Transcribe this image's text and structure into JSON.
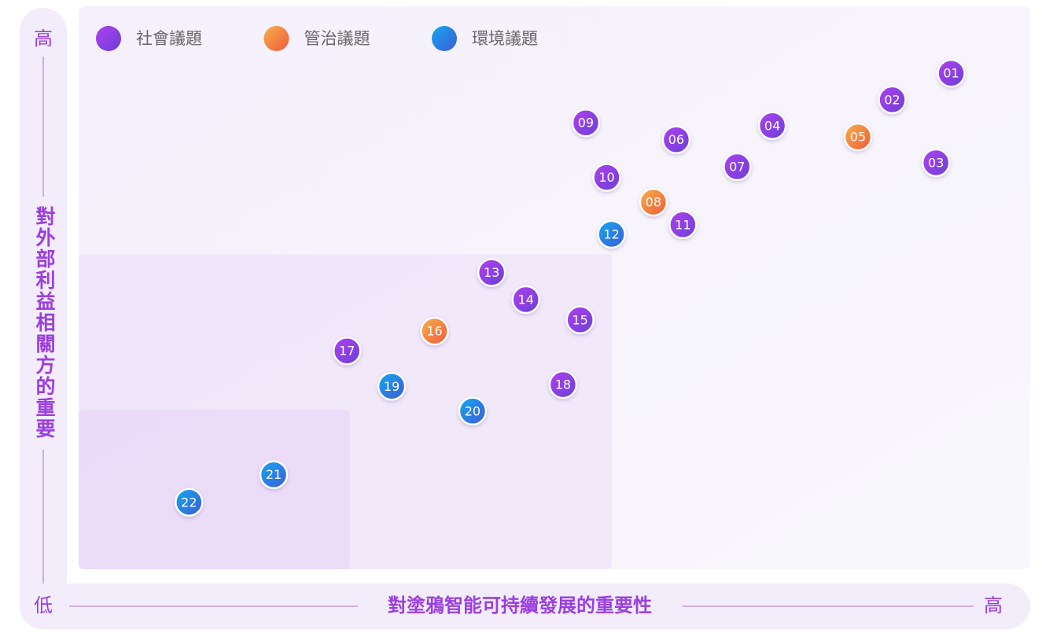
{
  "chart_data": {
    "type": "scatter",
    "xlabel": "對塗鴉智能可持續發展的重要性",
    "ylabel": "對外部利益相關方的重要",
    "low_label": "低",
    "x_high_label": "高",
    "y_high_label": "高",
    "xlim": [
      0,
      100
    ],
    "ylim": [
      0,
      100
    ],
    "series": [
      {
        "name": "社會議題",
        "colors": [
          "#b040f0",
          "#6a3fd6"
        ],
        "labels": [
          "01",
          "02",
          "03",
          "04",
          "06",
          "07",
          "09",
          "10",
          "11",
          "13",
          "14",
          "15",
          "17",
          "18"
        ],
        "x": [
          91.7,
          85.5,
          90.1,
          72.9,
          62.8,
          69.2,
          53.3,
          55.5,
          63.5,
          43.4,
          47.0,
          52.7,
          28.2,
          50.9
        ],
        "y": [
          88.1,
          83.4,
          72.2,
          78.8,
          76.3,
          71.5,
          79.3,
          69.6,
          61.2,
          52.7,
          47.9,
          44.3,
          38.8,
          32.8
        ]
      },
      {
        "name": "管治議題",
        "colors": [
          "#f8b04a",
          "#ee5a3c"
        ],
        "labels": [
          "05",
          "08",
          "16"
        ],
        "x": [
          81.9,
          60.4,
          37.4
        ],
        "y": [
          76.8,
          65.2,
          42.3
        ]
      },
      {
        "name": "環境議題",
        "colors": [
          "#15a8f0",
          "#3d5bd6"
        ],
        "labels": [
          "12",
          "19",
          "20",
          "21",
          "22"
        ],
        "x": [
          56.0,
          32.9,
          41.4,
          20.5,
          11.6
        ],
        "y": [
          59.5,
          32.5,
          28.1,
          16.8,
          11.9
        ]
      }
    ]
  }
}
